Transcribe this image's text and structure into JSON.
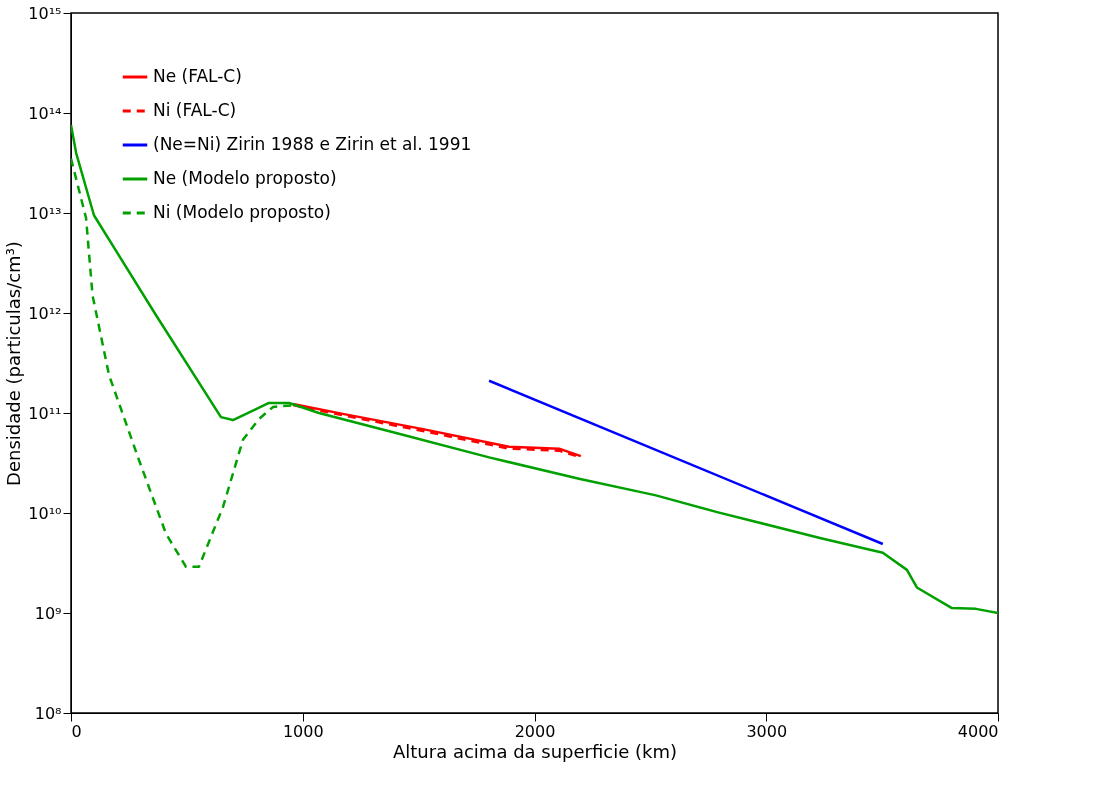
{
  "chart_data": {
    "type": "line",
    "xlabel": "Altura acima da superficie (km)",
    "ylabel": "Densidade (particulas/cm³)",
    "log": "y",
    "grid": false,
    "legend": "top left",
    "marker": "none",
    "xlim": [
      0,
      4000
    ],
    "xticks": [
      0,
      1000,
      2000,
      3000,
      4000
    ],
    "ylim": [
      100000000.0,
      1000000000000000.0
    ],
    "yticks": [
      {
        "value": 100000000.0,
        "label": "10⁸"
      },
      {
        "value": 1000000000.0,
        "label": "10⁹"
      },
      {
        "value": 10000000000.0,
        "label": "10¹⁰"
      },
      {
        "value": 100000000000.0,
        "label": "10¹¹"
      },
      {
        "value": 1000000000000.0,
        "label": "10¹²"
      },
      {
        "value": 10000000000000.0,
        "label": "10¹³"
      },
      {
        "value": 100000000000000.0,
        "label": "10¹⁴"
      },
      {
        "value": 1000000000000000.0,
        "label": "10¹⁵"
      }
    ],
    "series": [
      {
        "name": "Ne (FAL-C)",
        "color": "#ff0000",
        "line_style": "solid",
        "x": [
          958,
          1173,
          1519,
          1890,
          2106,
          2200
        ],
        "values": [
          123000000000.0,
          98000000000.0,
          69000000000.0,
          46000000000.0,
          44000000000.0,
          37000000000.0
        ]
      },
      {
        "name": "Ni (FAL-C)",
        "color": "#ff0000",
        "line_style": "dashed",
        "x": [
          958,
          1173,
          1519,
          1890,
          2106,
          2200
        ],
        "values": [
          120000000000.0,
          95000000000.0,
          66000000000.0,
          44000000000.0,
          42000000000.0,
          36000000000.0
        ]
      },
      {
        "name": "(Ne=Ni) Zirin 1988 e Zirin et al. 1991",
        "color": "#0000ff",
        "line_style": "solid",
        "x": [
          1804,
          3503
        ],
        "values": [
          210000000000.0,
          4900000000.0
        ]
      },
      {
        "name": "Ne (Modelo proposto)",
        "color": "#00a000",
        "line_style": "solid",
        "x": [
          0,
          22,
          99,
          367,
          647,
          699,
          854,
          941,
          1070,
          1415,
          1804,
          2192,
          2524,
          2788,
          3236,
          3503,
          3607,
          3650,
          3801,
          3905,
          4000
        ],
        "values": [
          76000000000000.0,
          40000000000000.0,
          9500000000000.0,
          950000000000.0,
          91000000000.0,
          85000000000.0,
          126000000000.0,
          126000000000.0,
          100000000000.0,
          62000000000.0,
          36000000000.0,
          22000000000.0,
          15000000000.0,
          10200000000.0,
          5600000000.0,
          4000000000.0,
          2700000000.0,
          1800000000.0,
          1120000000.0,
          1100000000.0,
          1000000000.0
        ]
      },
      {
        "name": "Ni (Modelo proposto)",
        "color": "#00a000",
        "line_style": "dashed",
        "x": [
          0,
          65,
          93,
          164,
          293,
          410,
          496,
          552,
          656,
          742,
          811,
          872,
          971
        ],
        "values": [
          35000000000000.0,
          8900000000000.0,
          1500000000000.0,
          240000000000.0,
          34000000000.0,
          6200000000.0,
          2900000000.0,
          2900000000.0,
          11500000000.0,
          54000000000.0,
          87000000000.0,
          115000000000.0,
          120000000000.0
        ]
      }
    ]
  }
}
